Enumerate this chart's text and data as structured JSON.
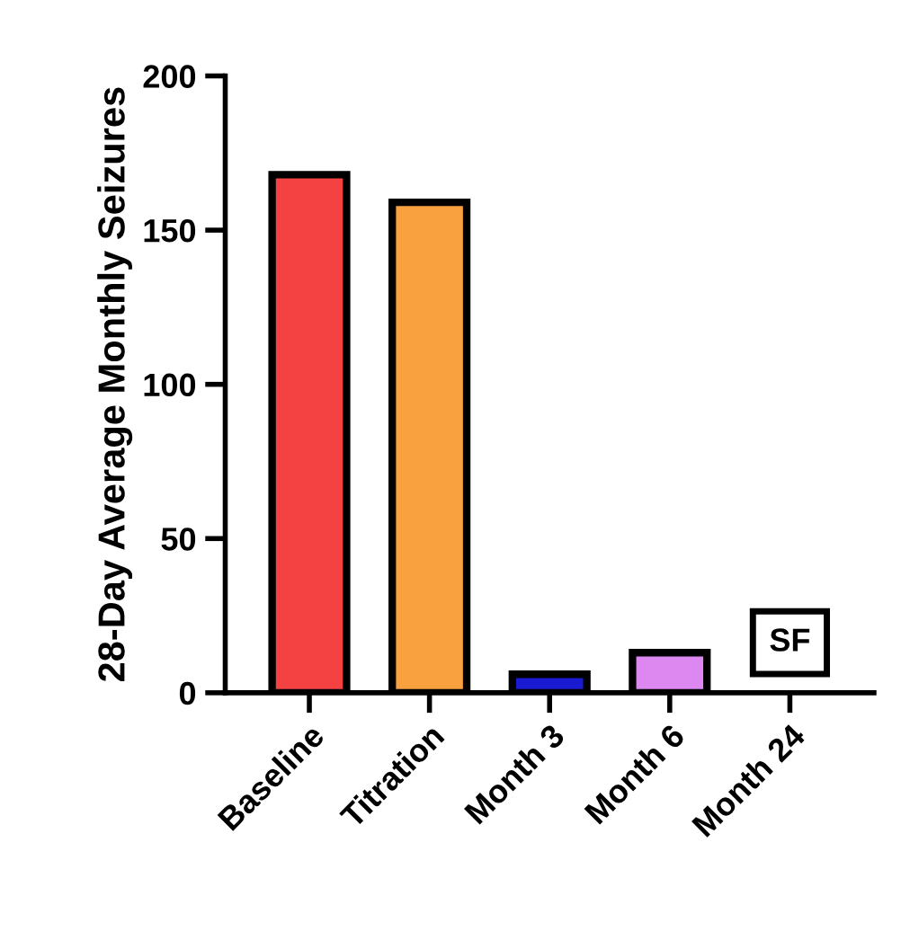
{
  "chart_data": {
    "type": "bar",
    "ylabel": "28-Day Average Monthly Seizures",
    "categories": [
      "Baseline",
      "Titration",
      "Month 3",
      "Month 6",
      "Month 24"
    ],
    "values": [
      168,
      159,
      6,
      13,
      null
    ],
    "colors": [
      "#f44242",
      "#f9a03f",
      "#1a1ad0",
      "#dd88f0",
      null
    ],
    "annotations": [
      "SF"
    ],
    "ylim": [
      0,
      200
    ],
    "yticks": [
      0,
      50,
      100,
      150,
      200
    ],
    "grid": false,
    "legend": false
  }
}
